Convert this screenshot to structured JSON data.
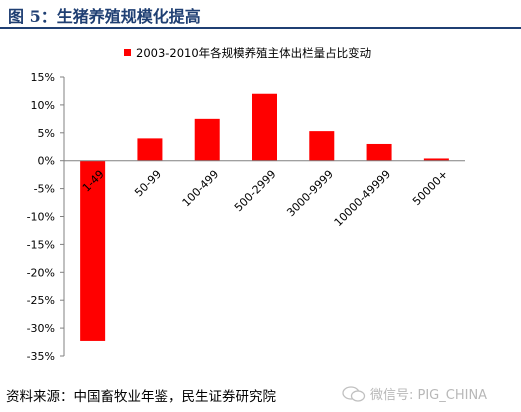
{
  "page": {
    "title": "图 5：生猪养殖规模化提高",
    "source": "资料来源：中国畜牧业年鉴，民生证券研究院",
    "watermark": "微信号: PIG_CHINA",
    "accent_color": "#1f3f73"
  },
  "chart_data": {
    "type": "bar",
    "title": "",
    "legend": "2003-2010年各规模养殖主体出栏量占比变动",
    "legend_position": "top-center",
    "categories": [
      "1-49",
      "50-99",
      "100-499",
      "500-2999",
      "3000-9999",
      "10000-49999",
      "50000+"
    ],
    "series": [
      {
        "name": "2003-2010年各规模养殖主体出栏量占比变动",
        "values": [
          -32.3,
          4.0,
          7.5,
          12.0,
          5.3,
          3.0,
          0.4
        ],
        "color": "#ff0000"
      }
    ],
    "ylim": [
      -35,
      15
    ],
    "yticks": [
      15,
      10,
      5,
      0,
      -5,
      -10,
      -15,
      -20,
      -25,
      -30,
      -35
    ],
    "ytick_labels": [
      "15%",
      "10%",
      "5%",
      "0%",
      "-5%",
      "-10%",
      "-15%",
      "-20%",
      "-25%",
      "-30%",
      "-35%"
    ],
    "xlabel": "",
    "ylabel": "",
    "grid": false
  }
}
